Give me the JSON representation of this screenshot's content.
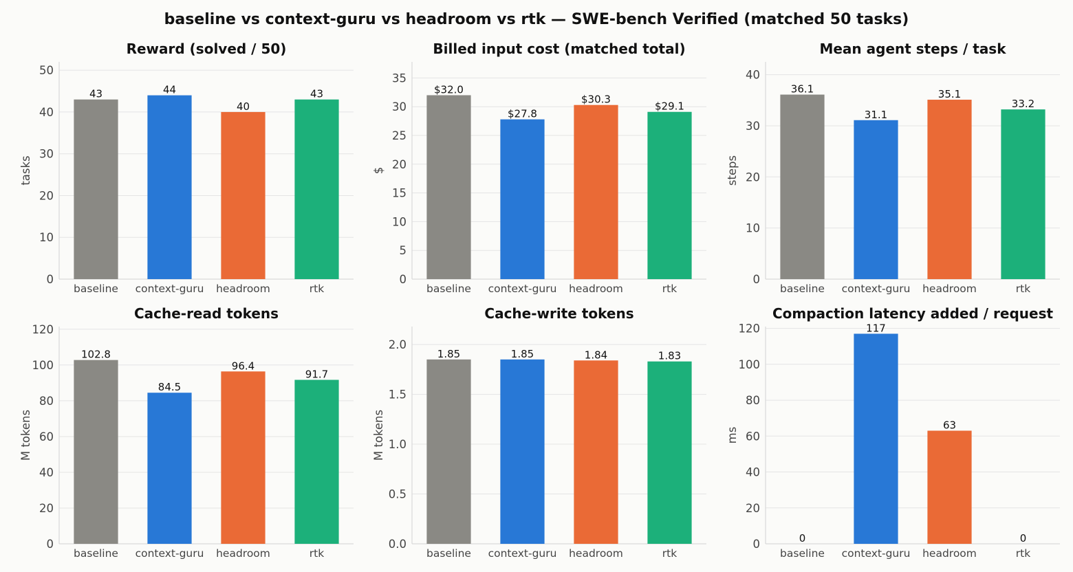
{
  "suptitle": "baseline vs context-guru vs headroom vs rtk — SWE-bench Verified (matched 50 tasks)",
  "colors": {
    "baseline": "#8a8984",
    "context-guru": "#2878d6",
    "headroom": "#ea6a36",
    "rtk": "#1cb07a"
  },
  "chart_data": [
    {
      "type": "bar",
      "title": "Reward (solved / 50)",
      "ylabel": "tasks",
      "categories": [
        "baseline",
        "context-guru",
        "headroom",
        "rtk"
      ],
      "values": [
        43,
        44,
        40,
        43
      ],
      "value_labels": [
        "43",
        "44",
        "40",
        "43"
      ],
      "ylim": [
        0,
        52
      ],
      "yticks": [
        0,
        10,
        20,
        30,
        40,
        50
      ],
      "ytick_labels": [
        "0",
        "10",
        "20",
        "30",
        "40",
        "50"
      ],
      "grid": true
    },
    {
      "type": "bar",
      "title": "Billed input cost (matched total)",
      "ylabel": "$",
      "categories": [
        "baseline",
        "context-guru",
        "headroom",
        "rtk"
      ],
      "values": [
        32.0,
        27.8,
        30.3,
        29.1
      ],
      "value_labels": [
        "$32.0",
        "$27.8",
        "$30.3",
        "$29.1"
      ],
      "ylim": [
        0,
        37.8
      ],
      "yticks": [
        0,
        5,
        10,
        15,
        20,
        25,
        30,
        35
      ],
      "ytick_labels": [
        "0",
        "5",
        "10",
        "15",
        "20",
        "25",
        "30",
        "35"
      ],
      "grid": true
    },
    {
      "type": "bar",
      "title": "Mean agent steps / task",
      "ylabel": "steps",
      "categories": [
        "baseline",
        "context-guru",
        "headroom",
        "rtk"
      ],
      "values": [
        36.1,
        31.1,
        35.1,
        33.2
      ],
      "value_labels": [
        "36.1",
        "31.1",
        "35.1",
        "33.2"
      ],
      "ylim": [
        0,
        42.5
      ],
      "yticks": [
        0,
        10,
        20,
        30,
        40
      ],
      "ytick_labels": [
        "0",
        "10",
        "20",
        "30",
        "40"
      ],
      "grid": true
    },
    {
      "type": "bar",
      "title": "Cache-read tokens",
      "ylabel": "M tokens",
      "categories": [
        "baseline",
        "context-guru",
        "headroom",
        "rtk"
      ],
      "values": [
        102.8,
        84.5,
        96.4,
        91.7
      ],
      "value_labels": [
        "102.8",
        "84.5",
        "96.4",
        "91.7"
      ],
      "ylim": [
        0,
        121.5
      ],
      "yticks": [
        0,
        20,
        40,
        60,
        80,
        100,
        120
      ],
      "ytick_labels": [
        "0",
        "20",
        "40",
        "60",
        "80",
        "100",
        "120"
      ],
      "grid": true
    },
    {
      "type": "bar",
      "title": "Cache-write tokens",
      "ylabel": "M tokens",
      "categories": [
        "baseline",
        "context-guru",
        "headroom",
        "rtk"
      ],
      "values": [
        1.85,
        1.85,
        1.84,
        1.83
      ],
      "value_labels": [
        "1.85",
        "1.85",
        "1.84",
        "1.83"
      ],
      "ylim": [
        0,
        2.18
      ],
      "yticks": [
        0,
        0.5,
        1.0,
        1.5,
        2.0
      ],
      "ytick_labels": [
        "0.0",
        "0.5",
        "1.0",
        "1.5",
        "2.0"
      ],
      "grid": true
    },
    {
      "type": "bar",
      "title": "Compaction latency added / request",
      "ylabel": "ms",
      "categories": [
        "baseline",
        "context-guru",
        "headroom",
        "rtk"
      ],
      "values": [
        0,
        117,
        63,
        0
      ],
      "value_labels": [
        "0",
        "117",
        "63",
        "0"
      ],
      "ylim": [
        0,
        121
      ],
      "yticks": [
        0,
        20,
        40,
        60,
        80,
        100,
        120
      ],
      "ytick_labels": [
        "0",
        "20",
        "40",
        "60",
        "80",
        "100",
        "120"
      ],
      "grid": true
    }
  ]
}
